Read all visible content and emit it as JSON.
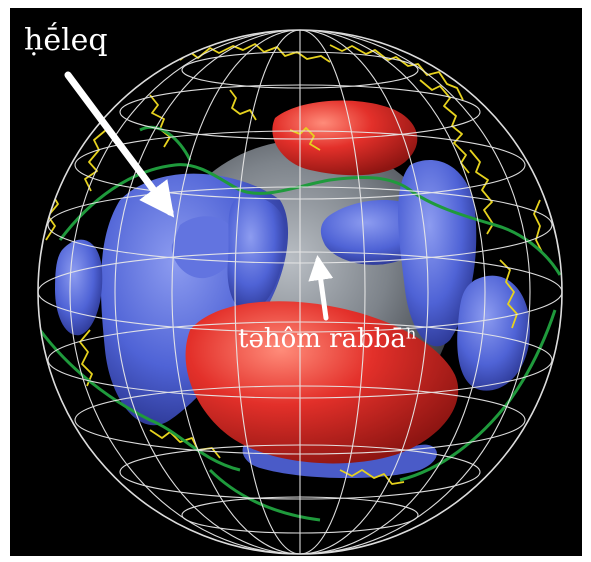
{
  "labels": {
    "heleq": "ḥḗleq",
    "tehom": "təhôm rabbāʰ"
  },
  "colors": {
    "background": "#000000",
    "frame": "#ffffff",
    "grid": "#e8e8e8",
    "coast_yellow": "#e6d21e",
    "coast_green": "#1f9a3c",
    "blob_blue": "#4f63d6",
    "blob_red": "#e3302a",
    "core_gray": "#8a8f96",
    "arrow": "#ffffff"
  }
}
